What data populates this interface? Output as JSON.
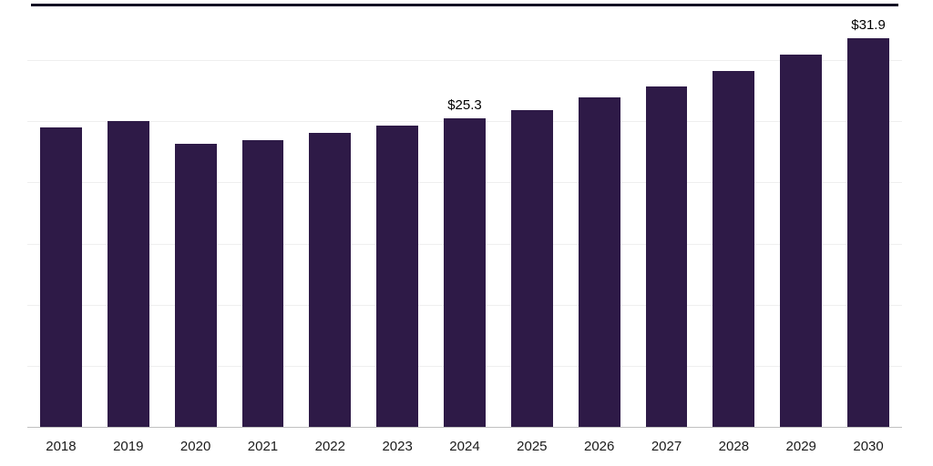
{
  "chart_data": {
    "type": "bar",
    "title": "",
    "xlabel": "",
    "ylabel": "",
    "categories": [
      "2018",
      "2019",
      "2020",
      "2021",
      "2022",
      "2023",
      "2024",
      "2025",
      "2026",
      "2027",
      "2028",
      "2029",
      "2030"
    ],
    "values": [
      24.6,
      25.1,
      23.2,
      23.5,
      24.1,
      24.7,
      25.3,
      26.0,
      27.0,
      27.9,
      29.2,
      30.5,
      31.9
    ],
    "data_labels": {
      "2024": "$25.3",
      "2030": "$31.9"
    },
    "ylim": [
      0,
      35
    ],
    "grid_step": 5,
    "grid": true,
    "legend": false,
    "bar_color": "#2e1a47",
    "gridline_color": "#efefef",
    "axis_line_color": "#c0c0c0",
    "top_line_color": "#140c24",
    "label_color": "#1a1a1a",
    "value_label_color": "#000000"
  }
}
